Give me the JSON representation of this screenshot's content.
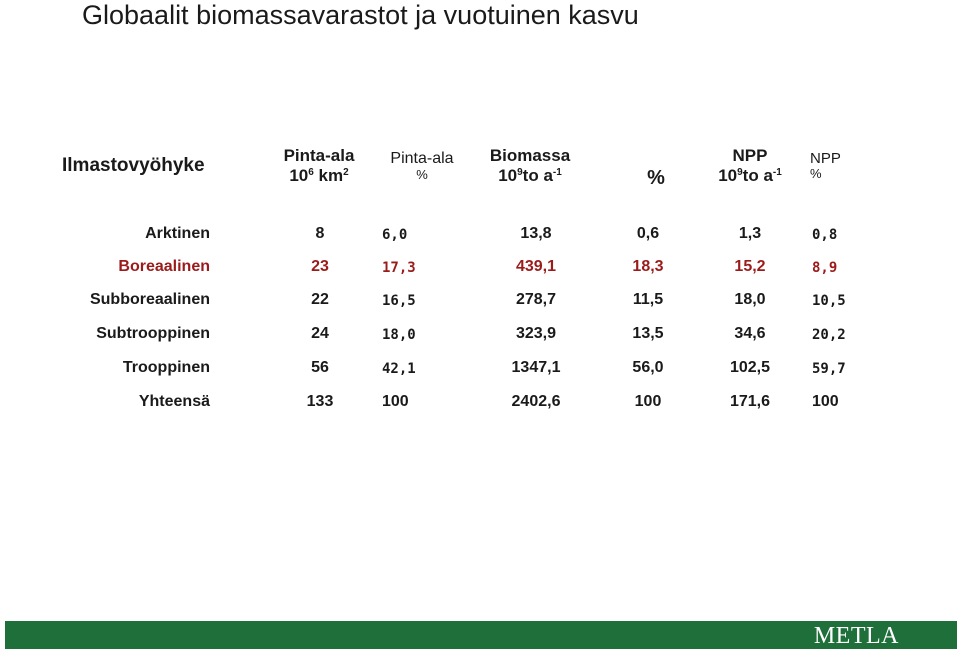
{
  "title": "Globaalit biomassavarastot ja vuotuinen kasvu",
  "header": {
    "zone": "Ilmastovyöhyke",
    "area_km": {
      "line1": "Pinta-ala",
      "base": "10",
      "exp": "6",
      "unit": " km",
      "unit_exp": "2"
    },
    "area_pct": {
      "line1": "Pinta-ala",
      "line2": "%"
    },
    "biomass": {
      "line1": "Biomassa",
      "base": "10",
      "exp": "9",
      "unit": "to a",
      "unit_exp": "-1"
    },
    "biomass_pct": "%",
    "npp": {
      "line1": "NPP",
      "base": "10",
      "exp": "9",
      "unit": "to a",
      "unit_exp": "-1"
    },
    "npp_pct": {
      "line1": "NPP",
      "line2": "%"
    }
  },
  "rows": [
    {
      "zone": "Arktinen",
      "area": "8",
      "area_pct": "6,0",
      "biomass": "13,8",
      "biomass_pct": "0,6",
      "npp": "1,3",
      "npp_pct": "0,8"
    },
    {
      "zone": "Boreaalinen",
      "area": "23",
      "area_pct": "17,3",
      "biomass": "439,1",
      "biomass_pct": "18,3",
      "npp": "15,2",
      "npp_pct": "8,9"
    },
    {
      "zone": "Subboreaalinen",
      "area": "22",
      "area_pct": "16,5",
      "biomass": "278,7",
      "biomass_pct": "11,5",
      "npp": "18,0",
      "npp_pct": "10,5"
    },
    {
      "zone": "Subtrooppinen",
      "area": "24",
      "area_pct": "18,0",
      "biomass": "323,9",
      "biomass_pct": "13,5",
      "npp": "34,6",
      "npp_pct": "20,2"
    },
    {
      "zone": "Trooppinen",
      "area": "56",
      "area_pct": "42,1",
      "biomass": "1347,1",
      "biomass_pct": "56,0",
      "npp": "102,5",
      "npp_pct": "59,7"
    },
    {
      "zone": "Yhteensä",
      "area": "133",
      "area_pct": "100",
      "biomass": "2402,6",
      "biomass_pct": "100",
      "npp": "171,6",
      "npp_pct": "100"
    }
  ],
  "highlight_color": "#9b1b1b",
  "footer": {
    "logo": "METLA",
    "color": "#1f6f3a"
  }
}
